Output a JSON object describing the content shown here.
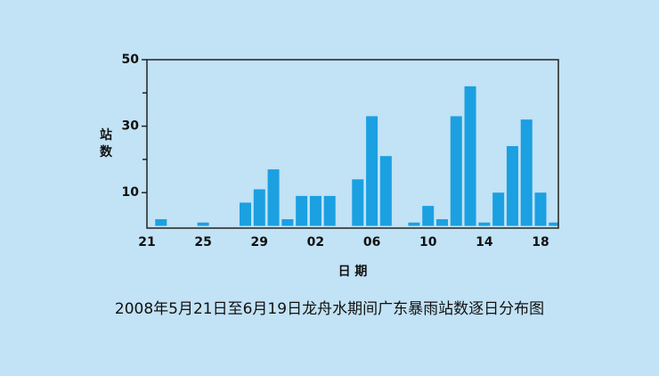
{
  "chart_data": {
    "type": "bar",
    "title": "2008年5月21日至6月19日龙舟水期间广东暴雨站数逐日分布图",
    "x_label": "日 期",
    "y_label": "站 数",
    "categories": [
      "21",
      null,
      null,
      null,
      "25",
      null,
      null,
      null,
      "29",
      null,
      null,
      null,
      "02",
      null,
      null,
      null,
      "06",
      null,
      null,
      null,
      "10",
      null,
      null,
      null,
      "14",
      null,
      null,
      null,
      "18",
      null
    ],
    "values": [
      0,
      2,
      0,
      0,
      1,
      0,
      0,
      7,
      11,
      17,
      2,
      9,
      9,
      9,
      0,
      14,
      33,
      21,
      0,
      1,
      6,
      2,
      33,
      42,
      1,
      10,
      24,
      32,
      10,
      1
    ],
    "color": "#1ba0e2",
    "ylim": [
      0,
      50
    ],
    "yticks": [
      10,
      30,
      50
    ],
    "yminorticks": [
      20,
      40
    ]
  }
}
